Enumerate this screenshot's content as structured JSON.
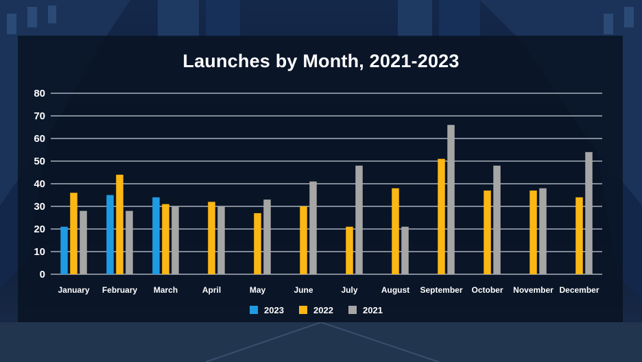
{
  "chart_data": {
    "type": "bar",
    "title": "Launches by Month, 2021-2023",
    "xlabel": "",
    "ylabel": "",
    "ylim": [
      0,
      80
    ],
    "yticks": [
      0,
      10,
      20,
      30,
      40,
      50,
      60,
      70,
      80
    ],
    "grid": true,
    "legend_position": "bottom",
    "categories": [
      "January",
      "February",
      "March",
      "April",
      "May",
      "June",
      "July",
      "August",
      "September",
      "October",
      "November",
      "December"
    ],
    "series": [
      {
        "name": "2023",
        "color": "#1f9be3",
        "values": [
          21,
          35,
          34,
          null,
          null,
          null,
          null,
          null,
          null,
          null,
          null,
          null
        ]
      },
      {
        "name": "2022",
        "color": "#fbb714",
        "values": [
          36,
          44,
          31,
          32,
          27,
          30,
          21,
          38,
          51,
          37,
          37,
          34
        ]
      },
      {
        "name": "2021",
        "color": "#a6a6a6",
        "values": [
          28,
          28,
          30,
          30,
          33,
          41,
          48,
          21,
          66,
          48,
          38,
          54
        ]
      }
    ]
  }
}
